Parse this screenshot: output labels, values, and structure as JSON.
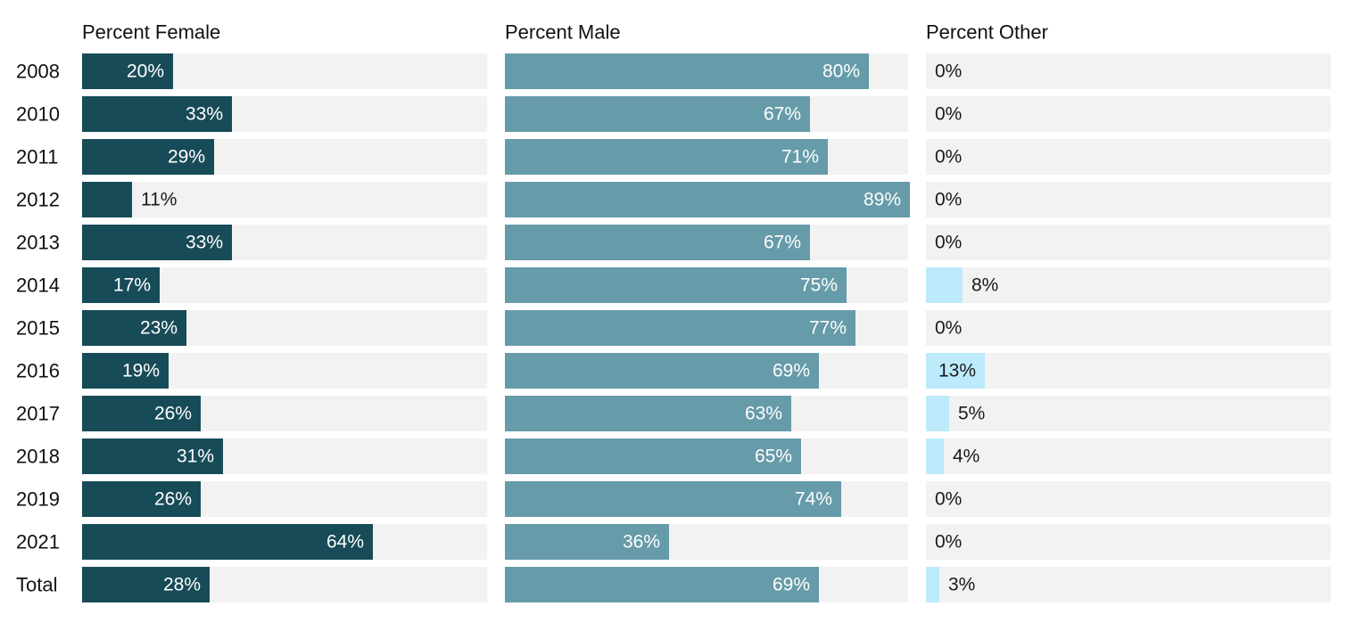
{
  "chart_data": {
    "type": "bar",
    "orientation": "horizontal",
    "layout": "small-multiples",
    "categories": [
      "2008",
      "2010",
      "2011",
      "2012",
      "2013",
      "2014",
      "2015",
      "2016",
      "2017",
      "2018",
      "2019",
      "2021",
      "Total"
    ],
    "series": [
      {
        "name": "Percent Female",
        "color": "#184b58",
        "values": [
          20,
          33,
          29,
          11,
          33,
          17,
          23,
          19,
          26,
          31,
          26,
          64,
          28
        ]
      },
      {
        "name": "Percent Male",
        "color": "#669ba9",
        "values": [
          80,
          67,
          71,
          89,
          67,
          75,
          77,
          69,
          63,
          65,
          74,
          36,
          69
        ]
      },
      {
        "name": "Percent Other",
        "color": "#bdebfb",
        "values": [
          0,
          0,
          0,
          0,
          0,
          8,
          0,
          13,
          5,
          4,
          0,
          0,
          3
        ]
      }
    ],
    "value_suffix": "%",
    "track_color": "#f2f2f2",
    "grid": false,
    "legend": "none"
  }
}
